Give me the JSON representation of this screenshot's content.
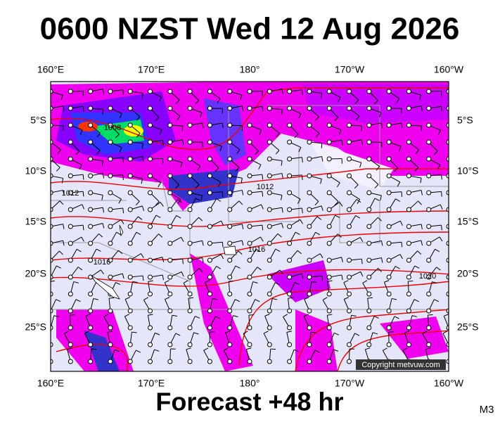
{
  "header": {
    "title": "0600 NZST Wed 12 Aug 2026"
  },
  "map": {
    "longitude_labels": [
      "160°E",
      "170°E",
      "180°",
      "170°W",
      "160°W"
    ],
    "latitude_labels": [
      "5°S",
      "10°S",
      "15°S",
      "20°S",
      "25°S"
    ],
    "isobar_labels": [
      "1008",
      "1012",
      "1012",
      "1016",
      "1016",
      "1020"
    ],
    "copyright": "Copyright metvuw.com"
  },
  "footer": {
    "caption": "Forecast +48 hr",
    "code": "M3"
  }
}
